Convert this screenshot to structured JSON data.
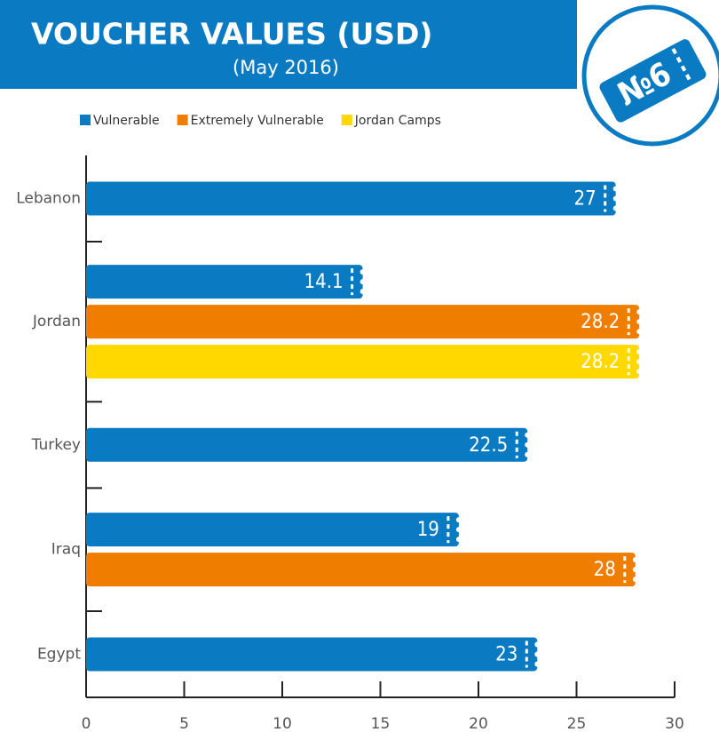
{
  "chart_data": {
    "type": "bar",
    "orientation": "horizontal",
    "title": "VOUCHER VALUES (USD)",
    "subtitle": "(May 2016)",
    "badge": "№6",
    "categories": [
      "Lebanon",
      "Jordan",
      "Turkey",
      "Iraq",
      "Egypt"
    ],
    "series": [
      {
        "name": "Vulnerable",
        "color": "#0a7bc2",
        "values": [
          27,
          14.1,
          22.5,
          19,
          23
        ]
      },
      {
        "name": "Extremely Vulnerable",
        "color": "#ef7d00",
        "values": [
          null,
          28.2,
          null,
          28,
          null
        ]
      },
      {
        "name": "Jordan Camps",
        "color": "#ffd800",
        "values": [
          null,
          28.2,
          null,
          null,
          null
        ]
      }
    ],
    "xlim": [
      0,
      30
    ],
    "xticks": [
      0,
      5,
      10,
      15,
      20,
      25,
      30
    ],
    "legend": "top-left"
  }
}
